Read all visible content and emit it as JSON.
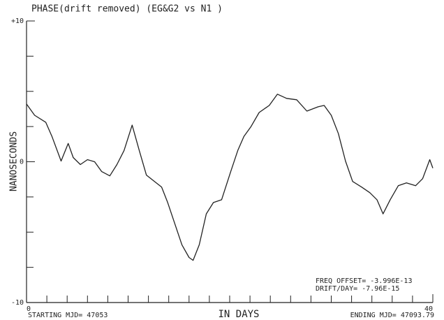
{
  "chart_data": {
    "type": "line",
    "title": "PHASE(drift removed)     (EG&G2 vs N1     )",
    "y_label": "NANOSECONDS",
    "x_label": "IN DAYS",
    "start_label": "STARTING MJD= 47053",
    "end_label": "ENDING MJD= 47093.79",
    "annotations": [
      "FREQ OFFSET= -3.996E-13",
      "DRIFT/DAY=    -7.96E-15"
    ],
    "xlim": [
      0,
      40
    ],
    "ylim": [
      -10,
      10
    ],
    "xticks": [
      0,
      40
    ],
    "xminorticks": [
      2,
      4,
      6,
      8,
      10,
      12,
      14,
      16,
      18,
      20,
      22,
      24,
      26,
      28,
      30,
      32,
      34,
      36,
      38
    ],
    "yticks": [
      {
        "value": 10,
        "label": "+10"
      },
      0,
      -10
    ],
    "yminorticks": [
      7.5,
      5,
      2.5,
      -2.5,
      -5,
      -7.5
    ],
    "color": "#222222",
    "x": [
      0,
      0.8,
      1.9,
      2.5,
      3.4,
      4.1,
      4.6,
      5.3,
      6.0,
      6.7,
      7.4,
      8.2,
      8.9,
      9.6,
      10.4,
      11.1,
      11.8,
      12.6,
      13.3,
      13.9,
      14.6,
      15.3,
      16.0,
      16.4,
      17.0,
      17.7,
      18.4,
      19.2,
      20.1,
      20.8,
      21.4,
      22.1,
      22.9,
      23.9,
      24.7,
      25.6,
      26.6,
      27.6,
      28.7,
      29.3,
      30.0,
      30.7,
      31.4,
      32.1,
      33.0,
      33.8,
      34.5,
      35.1,
      35.8,
      36.6,
      37.4,
      38.3,
      39.0,
      39.7,
      40
    ],
    "values": [
      4.1,
      3.3,
      2.8,
      1.8,
      0.05,
      1.3,
      0.3,
      -0.2,
      0.15,
      0,
      -0.7,
      -1.0,
      -0.2,
      0.8,
      2.6,
      0.8,
      -0.95,
      -1.4,
      -1.8,
      -2.9,
      -4.4,
      -5.9,
      -6.8,
      -7.0,
      -5.9,
      -3.7,
      -2.9,
      -2.7,
      -0.7,
      0.8,
      1.8,
      2.5,
      3.5,
      4.0,
      4.8,
      4.5,
      4.4,
      3.6,
      3.9,
      4.0,
      3.3,
      2.0,
      0.05,
      -1.4,
      -1.8,
      -2.2,
      -2.7,
      -3.7,
      -2.7,
      -1.7,
      -1.5,
      -1.7,
      -1.2,
      0.15,
      -0.45
    ]
  }
}
